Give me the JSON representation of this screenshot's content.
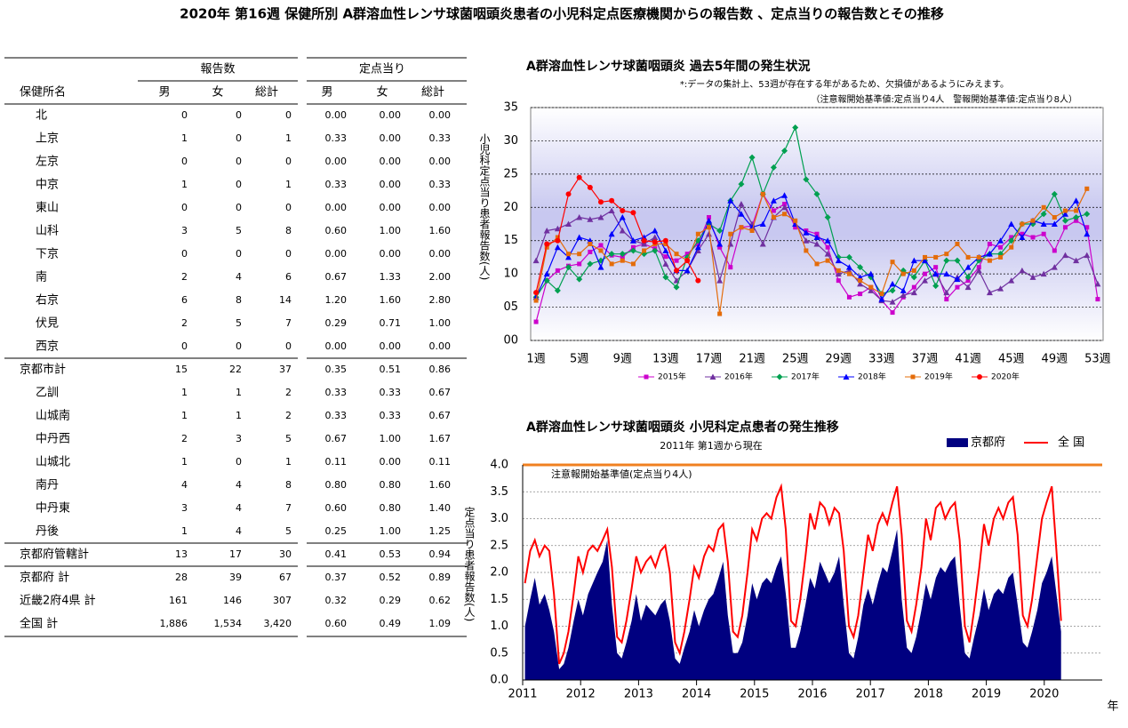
{
  "header": {
    "title": "2020年 第16週 保健所別 A群溶血性レンサ球菌咽頭炎患者の小児科定点医療機関からの報告数 、定点当りの報告数とその推移"
  },
  "table": {
    "group_headers": [
      "報告数",
      "定点当り"
    ],
    "columns": [
      "保健所名",
      "男",
      "女",
      "総計",
      "男",
      "女",
      "総計"
    ],
    "rows": [
      [
        "北",
        "0",
        "0",
        "0",
        "0.00",
        "0.00",
        "0.00"
      ],
      [
        "上京",
        "1",
        "0",
        "1",
        "0.33",
        "0.00",
        "0.33"
      ],
      [
        "左京",
        "0",
        "0",
        "0",
        "0.00",
        "0.00",
        "0.00"
      ],
      [
        "中京",
        "1",
        "0",
        "1",
        "0.33",
        "0.00",
        "0.33"
      ],
      [
        "東山",
        "0",
        "0",
        "0",
        "0.00",
        "0.00",
        "0.00"
      ],
      [
        "山科",
        "3",
        "5",
        "8",
        "0.60",
        "1.00",
        "1.60"
      ],
      [
        "下京",
        "0",
        "0",
        "0",
        "0.00",
        "0.00",
        "0.00"
      ],
      [
        "南",
        "2",
        "4",
        "6",
        "0.67",
        "1.33",
        "2.00"
      ],
      [
        "右京",
        "6",
        "8",
        "14",
        "1.20",
        "1.60",
        "2.80"
      ],
      [
        "伏見",
        "2",
        "5",
        "7",
        "0.29",
        "0.71",
        "1.00"
      ],
      [
        "西京",
        "0",
        "0",
        "0",
        "0.00",
        "0.00",
        "0.00"
      ],
      [
        "京都市計",
        "15",
        "22",
        "37",
        "0.35",
        "0.51",
        "0.86"
      ],
      [
        "乙訓",
        "1",
        "1",
        "2",
        "0.33",
        "0.33",
        "0.67"
      ],
      [
        "山城南",
        "1",
        "1",
        "2",
        "0.33",
        "0.33",
        "0.67"
      ],
      [
        "中丹西",
        "2",
        "3",
        "5",
        "0.67",
        "1.00",
        "1.67"
      ],
      [
        "山城北",
        "1",
        "0",
        "1",
        "0.11",
        "0.00",
        "0.11"
      ],
      [
        "南丹",
        "4",
        "4",
        "8",
        "0.80",
        "0.80",
        "1.60"
      ],
      [
        "中丹東",
        "3",
        "4",
        "7",
        "0.60",
        "0.80",
        "1.40"
      ],
      [
        "丹後",
        "1",
        "4",
        "5",
        "0.25",
        "1.00",
        "1.25"
      ],
      [
        "京都府管轄計",
        "13",
        "17",
        "30",
        "0.41",
        "0.53",
        "0.94"
      ],
      [
        "京都府 計",
        "28",
        "39",
        "67",
        "0.37",
        "0.52",
        "0.89"
      ],
      [
        "近畿2府4県 計",
        "161",
        "146",
        "307",
        "0.32",
        "0.29",
        "0.62"
      ],
      [
        "全国 計",
        "1,886",
        "1,534",
        "3,420",
        "0.60",
        "0.49",
        "1.09"
      ]
    ]
  },
  "chart_data": [
    {
      "type": "line",
      "title": "A群溶血性レンサ球菌咽頭炎 過去5年間の発生状況",
      "annotations": [
        "*:データの集計上、53週が存在する年があるため、欠損値があるようにみえます。",
        "（注意報開始基準値:定点当り4人　警報開始基準値:定点当り8人）"
      ],
      "ylabel": "小児科定点当り患者報告数(人)",
      "categories": [
        "1週",
        null,
        null,
        null,
        "5週",
        null,
        null,
        null,
        "9週",
        null,
        null,
        null,
        "13週",
        null,
        null,
        null,
        "17週",
        null,
        null,
        null,
        "21週",
        null,
        null,
        null,
        "25週",
        null,
        null,
        null,
        "29週",
        null,
        null,
        null,
        "33週",
        null,
        null,
        null,
        "37週",
        null,
        null,
        null,
        "41週",
        null,
        null,
        null,
        "45週",
        null,
        null,
        null,
        "49週",
        null,
        null,
        null,
        "53週"
      ],
      "ylim": [
        0,
        3.5
      ],
      "yticks": [
        {
          "value": 0,
          "label": "00"
        },
        {
          "value": 0.5,
          "label": "05"
        },
        {
          "value": 1,
          "label": "10"
        },
        {
          "value": 1.5,
          "label": "15"
        },
        {
          "value": 2,
          "label": "20"
        },
        {
          "value": 2.5,
          "label": "25"
        },
        {
          "value": 3,
          "label": "30"
        },
        {
          "value": 3.5,
          "label": "35"
        }
      ],
      "grid": true,
      "series": [
        {
          "name": "2015年",
          "color": "#cc00cc",
          "marker": "square",
          "values": [
            0.28,
            0.9,
            1.05,
            1.12,
            1.15,
            1.33,
            1.43,
            1.28,
            1.25,
            1.4,
            1.45,
            1.38,
            1.26,
            1.2,
            1.3,
            1.45,
            1.85,
            1.4,
            1.1,
            1.7,
            1.72,
            2.2,
            1.95,
            2.05,
            1.7,
            1.65,
            1.6,
            1.4,
            0.9,
            0.65,
            0.7,
            0.8,
            0.6,
            0.42,
            0.65,
            0.8,
            1.0,
            1.1,
            0.62,
            0.8,
            0.9,
            1.1,
            1.45,
            1.4,
            1.55,
            1.6,
            1.55,
            1.6,
            1.35,
            1.7,
            1.8,
            1.7,
            0.62
          ]
        },
        {
          "name": "2016年",
          "color": "#7030a0",
          "marker": "triangle",
          "values": [
            1.2,
            1.65,
            1.68,
            1.75,
            1.85,
            1.82,
            1.85,
            1.95,
            1.65,
            1.5,
            1.45,
            1.55,
            1.15,
            0.9,
            1.05,
            1.35,
            1.6,
            0.9,
            1.45,
            2.05,
            1.75,
            1.45,
            1.85,
            2.0,
            1.75,
            1.5,
            1.45,
            1.3,
            1.0,
            1.05,
            0.85,
            0.75,
            0.6,
            0.58,
            0.68,
            0.72,
            0.9,
            1.0,
            0.72,
            0.95,
            0.8,
            1.05,
            0.72,
            0.78,
            0.9,
            1.05,
            0.95,
            1.0,
            1.1,
            1.28,
            1.2,
            1.28,
            0.85
          ]
        },
        {
          "name": "2017年",
          "color": "#00a050",
          "marker": "diamond",
          "values": [
            0.65,
            0.9,
            0.75,
            1.1,
            0.92,
            1.15,
            1.2,
            1.3,
            1.3,
            1.35,
            1.3,
            1.35,
            0.95,
            0.8,
            1.25,
            1.5,
            1.75,
            1.65,
            2.1,
            2.35,
            2.75,
            2.2,
            2.6,
            2.85,
            3.2,
            2.42,
            2.2,
            1.85,
            1.25,
            1.25,
            1.1,
            0.95,
            0.7,
            0.75,
            1.05,
            0.95,
            1.2,
            0.82,
            1.2,
            1.2,
            0.95,
            1.2,
            1.3,
            1.3,
            1.5,
            1.75,
            1.75,
            1.9,
            2.2,
            1.8,
            1.85,
            1.9,
            null
          ]
        },
        {
          "name": "2018年",
          "color": "#0000ff",
          "marker": "triangle",
          "values": [
            0.65,
            1.0,
            1.4,
            1.25,
            1.55,
            1.5,
            1.1,
            1.6,
            1.85,
            1.5,
            1.55,
            1.65,
            1.35,
            1.05,
            1.05,
            1.4,
            1.8,
            1.45,
            2.1,
            1.9,
            1.7,
            1.75,
            2.1,
            2.18,
            1.75,
            1.62,
            1.55,
            1.5,
            1.2,
            1.1,
            0.95,
            1.0,
            0.62,
            0.85,
            0.75,
            1.2,
            1.2,
            1.0,
            1.0,
            0.92,
            1.1,
            1.25,
            1.3,
            1.5,
            1.75,
            1.55,
            1.8,
            1.75,
            1.75,
            1.9,
            2.1,
            1.6,
            null
          ]
        },
        {
          "name": "2019年",
          "color": "#e46c0a",
          "marker": "square",
          "values": [
            0.6,
            1.4,
            1.55,
            1.3,
            1.3,
            1.45,
            1.35,
            1.15,
            1.2,
            1.15,
            1.35,
            1.45,
            1.45,
            1.3,
            1.2,
            1.6,
            1.7,
            0.4,
            1.6,
            1.7,
            1.65,
            2.2,
            1.85,
            1.9,
            1.8,
            1.35,
            1.15,
            1.2,
            1.05,
            1.0,
            0.9,
            0.8,
            0.7,
            1.18,
            1.0,
            1.05,
            1.25,
            1.25,
            1.3,
            1.45,
            1.25,
            1.25,
            1.2,
            1.25,
            1.4,
            1.75,
            1.8,
            2.0,
            1.85,
            1.95,
            1.95,
            2.28,
            null
          ]
        },
        {
          "name": "2020年",
          "color": "#ff0000",
          "marker": "circle",
          "values": [
            0.72,
            1.45,
            1.5,
            2.2,
            2.45,
            2.3,
            2.08,
            2.1,
            1.95,
            1.92,
            1.5,
            1.48,
            1.5,
            1.05,
            1.2,
            0.9,
            null,
            null,
            null,
            null,
            null,
            null,
            null,
            null,
            null,
            null,
            null,
            null,
            null,
            null,
            null,
            null,
            null,
            null,
            null,
            null,
            null,
            null,
            null,
            null,
            null,
            null,
            null,
            null,
            null,
            null,
            null,
            null,
            null,
            null,
            null,
            null,
            null
          ]
        }
      ]
    },
    {
      "type": "line",
      "title": "A群溶血性レンサ球菌咽頭炎 小児科定点患者の発生推移",
      "subtitle": "2011年 第1週から現在",
      "ylabel": "定点当り患者報告数(人)",
      "xlabel": "年",
      "threshold": {
        "text": "注意報開始基準値(定点当り4人)",
        "value": 4,
        "color": "#f08020"
      },
      "xlim": [
        2011,
        2021
      ],
      "xticks": [
        2011,
        2012,
        2013,
        2014,
        2015,
        2016,
        2017,
        2018,
        2019,
        2020
      ],
      "ylim": [
        0,
        4
      ],
      "yticks": [
        {
          "value": 0,
          "label": "0.0"
        },
        {
          "value": 0.5,
          "label": "0.5"
        },
        {
          "value": 1,
          "label": "1.0"
        },
        {
          "value": 1.5,
          "label": "1.5"
        },
        {
          "value": 2,
          "label": "2.0"
        },
        {
          "value": 2.5,
          "label": "2.5"
        },
        {
          "value": 3,
          "label": "3.0"
        },
        {
          "value": 3.5,
          "label": "3.5"
        },
        {
          "value": 4,
          "label": "4.0"
        }
      ],
      "grid": true,
      "x": [
        2011.04,
        2011.13,
        2011.21,
        2011.29,
        2011.38,
        2011.46,
        2011.54,
        2011.63,
        2011.71,
        2011.79,
        2011.88,
        2011.96,
        2012.04,
        2012.13,
        2012.21,
        2012.29,
        2012.38,
        2012.46,
        2012.54,
        2012.63,
        2012.71,
        2012.79,
        2012.88,
        2012.96,
        2013.04,
        2013.13,
        2013.21,
        2013.29,
        2013.38,
        2013.46,
        2013.54,
        2013.63,
        2013.71,
        2013.79,
        2013.88,
        2013.96,
        2014.04,
        2014.13,
        2014.21,
        2014.29,
        2014.38,
        2014.46,
        2014.54,
        2014.63,
        2014.71,
        2014.79,
        2014.88,
        2014.96,
        2015.04,
        2015.13,
        2015.21,
        2015.29,
        2015.38,
        2015.46,
        2015.54,
        2015.63,
        2015.71,
        2015.79,
        2015.88,
        2015.96,
        2016.04,
        2016.13,
        2016.21,
        2016.29,
        2016.38,
        2016.46,
        2016.54,
        2016.63,
        2016.71,
        2016.79,
        2016.88,
        2016.96,
        2017.04,
        2017.13,
        2017.21,
        2017.29,
        2017.38,
        2017.46,
        2017.54,
        2017.63,
        2017.71,
        2017.79,
        2017.88,
        2017.96,
        2018.04,
        2018.13,
        2018.21,
        2018.29,
        2018.38,
        2018.46,
        2018.54,
        2018.63,
        2018.71,
        2018.79,
        2018.88,
        2018.96,
        2019.04,
        2019.13,
        2019.21,
        2019.29,
        2019.38,
        2019.46,
        2019.54,
        2019.63,
        2019.71,
        2019.79,
        2019.88,
        2019.96,
        2020.04,
        2020.13,
        2020.21,
        2020.29
      ],
      "series": [
        {
          "name": "京都府",
          "color": "#000080",
          "kind": "area",
          "values": [
            1.0,
            1.5,
            1.9,
            1.4,
            1.6,
            1.3,
            0.9,
            0.2,
            0.3,
            0.6,
            1.1,
            1.5,
            1.2,
            1.6,
            1.8,
            2.0,
            2.2,
            2.6,
            1.4,
            0.5,
            0.4,
            0.7,
            1.1,
            1.6,
            1.1,
            1.4,
            1.3,
            1.2,
            1.4,
            1.5,
            1.1,
            0.4,
            0.3,
            0.6,
            0.9,
            1.3,
            1.0,
            1.3,
            1.5,
            1.6,
            1.9,
            2.2,
            1.2,
            0.5,
            0.5,
            0.7,
            1.2,
            1.8,
            1.5,
            1.8,
            1.9,
            1.8,
            2.1,
            2.3,
            1.6,
            0.6,
            0.6,
            0.9,
            1.4,
            1.9,
            1.7,
            2.2,
            2.0,
            1.8,
            2.0,
            2.3,
            1.4,
            0.5,
            0.4,
            0.8,
            1.4,
            1.7,
            1.4,
            1.8,
            2.1,
            2.0,
            2.4,
            2.8,
            1.5,
            0.6,
            0.5,
            0.8,
            1.3,
            1.8,
            1.5,
            1.9,
            2.1,
            2.0,
            2.2,
            2.3,
            1.4,
            0.5,
            0.4,
            0.8,
            1.2,
            1.7,
            1.3,
            1.6,
            1.7,
            1.6,
            1.9,
            2.0,
            1.4,
            0.7,
            0.6,
            0.9,
            1.3,
            1.8,
            2.0,
            2.3,
            1.6,
            0.9
          ]
        },
        {
          "name": "全 国",
          "color": "#ff0000",
          "kind": "line",
          "values": [
            1.8,
            2.4,
            2.6,
            2.3,
            2.5,
            2.4,
            1.6,
            0.3,
            0.5,
            0.9,
            1.6,
            2.3,
            2.0,
            2.4,
            2.5,
            2.4,
            2.6,
            2.8,
            2.1,
            0.8,
            0.7,
            1.1,
            1.7,
            2.3,
            2.0,
            2.2,
            2.3,
            2.1,
            2.4,
            2.5,
            2.0,
            0.7,
            0.5,
            0.9,
            1.5,
            2.1,
            1.9,
            2.3,
            2.5,
            2.4,
            2.8,
            2.9,
            2.2,
            0.9,
            0.8,
            1.2,
            2.0,
            2.8,
            2.6,
            3.0,
            3.1,
            3.0,
            3.4,
            3.6,
            2.8,
            1.1,
            1.0,
            1.5,
            2.3,
            3.1,
            2.8,
            3.3,
            3.2,
            2.9,
            3.2,
            3.1,
            2.4,
            1.0,
            0.8,
            1.2,
            2.0,
            2.7,
            2.4,
            2.9,
            3.1,
            2.9,
            3.3,
            3.6,
            2.7,
            1.1,
            0.9,
            1.4,
            2.1,
            3.0,
            2.6,
            3.2,
            3.3,
            3.0,
            3.2,
            3.3,
            2.6,
            1.0,
            0.7,
            1.3,
            2.1,
            2.9,
            2.5,
            3.0,
            3.2,
            3.0,
            3.3,
            3.4,
            2.7,
            1.2,
            1.0,
            1.5,
            2.3,
            3.0,
            3.3,
            3.6,
            2.4,
            1.1
          ]
        }
      ]
    }
  ]
}
